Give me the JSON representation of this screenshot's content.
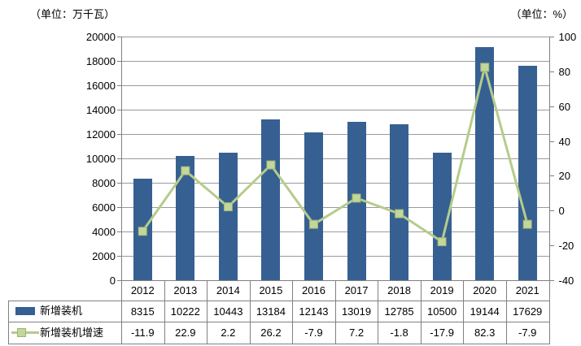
{
  "units": {
    "left": "（单位：万千瓦）",
    "right": "（单位：%）"
  },
  "chart_data": {
    "type": "bar",
    "subtype": "bar-line-combo",
    "categories": [
      "2012",
      "2013",
      "2014",
      "2015",
      "2016",
      "2017",
      "2018",
      "2019",
      "2020",
      "2021"
    ],
    "series": [
      {
        "name": "新增装机",
        "type": "bar",
        "axis": "left",
        "color": "#366092",
        "values": [
          8315,
          10222,
          10443,
          13184,
          12143,
          13019,
          12785,
          10500,
          19144,
          17629
        ]
      },
      {
        "name": "新增装机增速",
        "type": "line",
        "axis": "right",
        "color": "#B5CC8C",
        "marker_fill": "#C3D69B",
        "marker_border": "#9DB56F",
        "values": [
          -11.9,
          22.9,
          2.2,
          26.2,
          -7.9,
          7.2,
          -1.8,
          -17.9,
          82.3,
          -7.9
        ]
      }
    ],
    "left_axis": {
      "min": 0,
      "max": 20000,
      "step": 2000,
      "unit": "万千瓦"
    },
    "right_axis": {
      "min": -40,
      "max": 100,
      "step": 20,
      "unit": "%"
    },
    "grid": true,
    "legend_position": "data-table-left",
    "title": "",
    "xlabel": "",
    "ylabel": ""
  },
  "colors": {
    "bar": "#366092",
    "line": "#B5CC8C",
    "marker_fill": "#C3D69B",
    "marker_border": "#9DB56F",
    "gridline": "#9a9a9a",
    "axis": "#808080",
    "table_border": "#808080",
    "text": "#000000",
    "background": "#FFFFFF"
  }
}
